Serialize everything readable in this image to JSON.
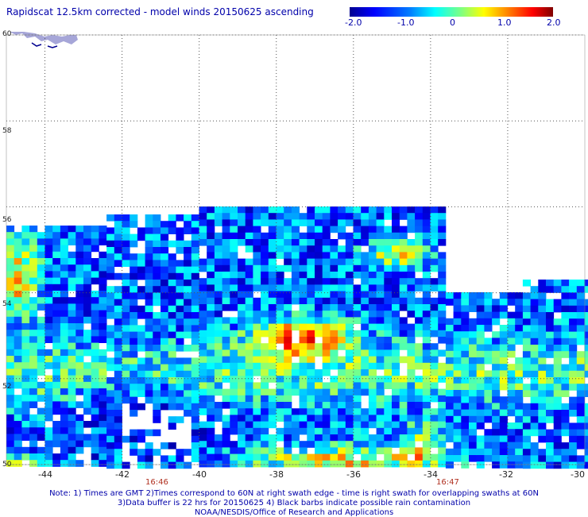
{
  "title": "Rapidscat 12.5km corrected - model winds 20150625 ascending",
  "colorbar": {
    "ticks": [
      "-2.0",
      "-1.0",
      "0",
      "1.0",
      "2.0"
    ],
    "range": [
      -2.0,
      2.0
    ],
    "colors": [
      "#00008f",
      "#0000ff",
      "#0080ff",
      "#00ffff",
      "#80ff80",
      "#ffff00",
      "#ff8000",
      "#ff0000",
      "#800000"
    ]
  },
  "map": {
    "lat_labels": [
      "60",
      "58",
      "56",
      "54",
      "52",
      "50"
    ],
    "lon_labels": [
      "-44",
      "-42",
      "-40",
      "-38",
      "-36",
      "-34",
      "-32",
      "-30"
    ],
    "lat_range": [
      50,
      60
    ],
    "lon_range": [
      -45,
      -30
    ],
    "time_labels": [
      {
        "text": "16:46",
        "lon": -41.8
      },
      {
        "text": "16:47",
        "lon": -33.6
      }
    ],
    "background": "#ffffff",
    "land_color": "#00008f"
  },
  "notes": [
    "Note: 1) Times are GMT 2)Times correspond to 60N at right swath edge - time is right swath for overlapping swaths at 60N",
    "3)Data buffer is 22 hrs for 20150625 4) Black barbs indicate possible rain contamination",
    "NOAA/NESDIS/Office of Research and Applications"
  ]
}
